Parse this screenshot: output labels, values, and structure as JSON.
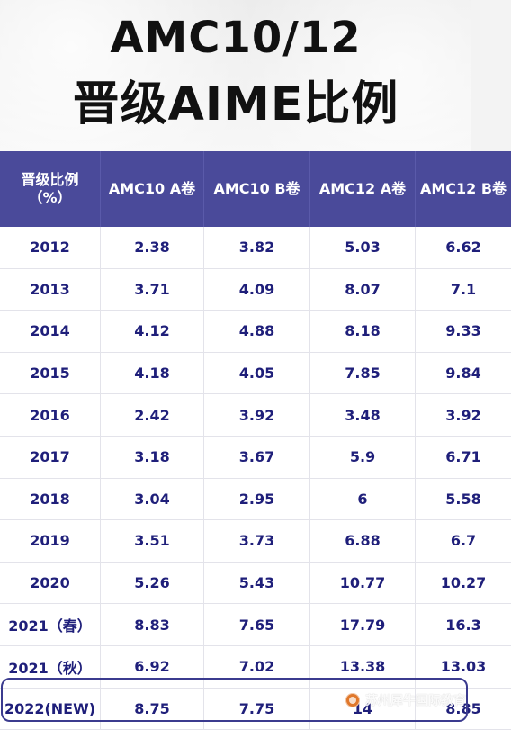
{
  "title": {
    "line1": "AMC10/12",
    "line2": "晋级AIME比例"
  },
  "table": {
    "headers": [
      "晋级比例（%）",
      "AMC10 A卷",
      "AMC10 B卷",
      "AMC12 A卷",
      "AMC12 B卷"
    ],
    "rows": [
      [
        "2012",
        "2.38",
        "3.82",
        "5.03",
        "6.62"
      ],
      [
        "2013",
        "3.71",
        "4.09",
        "8.07",
        "7.1"
      ],
      [
        "2014",
        "4.12",
        "4.88",
        "8.18",
        "9.33"
      ],
      [
        "2015",
        "4.18",
        "4.05",
        "7.85",
        "9.84"
      ],
      [
        "2016",
        "2.42",
        "3.92",
        "3.48",
        "3.92"
      ],
      [
        "2017",
        "3.18",
        "3.67",
        "5.9",
        "6.71"
      ],
      [
        "2018",
        "3.04",
        "2.95",
        "6",
        "5.58"
      ],
      [
        "2019",
        "3.51",
        "3.73",
        "6.88",
        "6.7"
      ],
      [
        "2020",
        "5.26",
        "5.43",
        "10.77",
        "10.27"
      ],
      [
        "2021（春）",
        "8.83",
        "7.65",
        "17.79",
        "16.3"
      ],
      [
        "2021（秋）",
        "6.92",
        "7.02",
        "13.38",
        "13.03"
      ],
      [
        "2022(NEW)",
        "8.75",
        "7.75",
        "14",
        "8.85"
      ]
    ]
  },
  "watermark": {
    "text": "苏州犀牛国际教育",
    "icon": "wechat-icon"
  },
  "colors": {
    "header_bg": "#4a4a9a",
    "cell_text": "#1f1f7a",
    "page_bg": "#f3f3f3",
    "title_text": "#111111"
  }
}
